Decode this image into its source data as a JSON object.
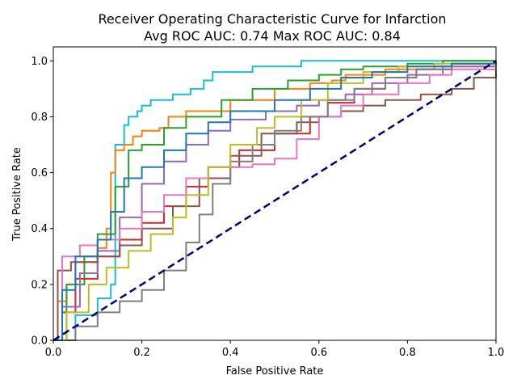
{
  "chart_data": {
    "type": "line",
    "title": "Receiver Operating Characteristic Curve for Infarction",
    "subtitle": "Avg ROC AUC: 0.74  Max ROC AUC: 0.84",
    "xlabel": "False Positive Rate",
    "ylabel": "True Positive Rate",
    "xlim": [
      0,
      1
    ],
    "ylim": [
      0,
      1.05
    ],
    "x_ticks": [
      "0.0",
      "0.2",
      "0.4",
      "0.6",
      "0.8",
      "1.0"
    ],
    "y_ticks": [
      "0.0",
      "0.2",
      "0.4",
      "0.6",
      "0.8",
      "1.0"
    ],
    "grid": false,
    "legend": "none",
    "diagonal": {
      "x": [
        0,
        1
      ],
      "y": [
        0,
        1
      ],
      "color": "#000080",
      "style": "dashed"
    },
    "series": [
      {
        "color": "#17becf",
        "x": [
          0,
          0.05,
          0.1,
          0.13,
          0.14,
          0.16,
          0.16,
          0.17,
          0.19,
          0.2,
          0.22,
          0.27,
          0.31,
          0.34,
          0.36,
          0.45,
          0.56,
          0.63,
          0.66,
          0.7,
          0.8,
          1.0
        ],
        "y": [
          0,
          0.09,
          0.15,
          0.2,
          0.7,
          0.72,
          0.77,
          0.8,
          0.82,
          0.84,
          0.86,
          0.88,
          0.9,
          0.93,
          0.96,
          0.98,
          1.0,
          1.0,
          1.0,
          1.0,
          1.0,
          1.0
        ]
      },
      {
        "color": "#ff7f0e",
        "x": [
          0,
          0.01,
          0.03,
          0.05,
          0.1,
          0.12,
          0.13,
          0.14,
          0.16,
          0.18,
          0.2,
          0.24,
          0.26,
          0.3,
          0.4,
          0.5,
          0.58,
          0.63,
          0.66,
          0.75,
          0.86,
          1.0
        ],
        "y": [
          0,
          0.14,
          0.2,
          0.28,
          0.33,
          0.4,
          0.6,
          0.68,
          0.7,
          0.73,
          0.75,
          0.76,
          0.8,
          0.82,
          0.86,
          0.9,
          0.92,
          0.93,
          0.95,
          0.97,
          0.98,
          1.0
        ]
      },
      {
        "color": "#2ca02c",
        "x": [
          0,
          0.03,
          0.07,
          0.1,
          0.14,
          0.17,
          0.2,
          0.25,
          0.3,
          0.38,
          0.45,
          0.53,
          0.6,
          0.65,
          0.7,
          0.8,
          0.88,
          1.0
        ],
        "y": [
          0,
          0.2,
          0.3,
          0.38,
          0.55,
          0.68,
          0.7,
          0.76,
          0.8,
          0.86,
          0.9,
          0.93,
          0.95,
          0.97,
          0.98,
          0.99,
          1.0,
          1.0
        ]
      },
      {
        "color": "#d62728",
        "x": [
          0,
          0.02,
          0.05,
          0.1,
          0.15,
          0.2,
          0.25,
          0.3,
          0.35,
          0.42,
          0.5,
          0.58,
          0.62,
          0.68,
          0.75,
          0.82,
          0.9,
          1.0
        ],
        "y": [
          0,
          0.1,
          0.22,
          0.3,
          0.36,
          0.42,
          0.48,
          0.55,
          0.62,
          0.68,
          0.74,
          0.8,
          0.85,
          0.9,
          0.94,
          0.97,
          0.99,
          1.0
        ]
      },
      {
        "color": "#9467bd",
        "x": [
          0,
          0.02,
          0.06,
          0.1,
          0.15,
          0.2,
          0.25,
          0.3,
          0.35,
          0.4,
          0.48,
          0.55,
          0.6,
          0.66,
          0.72,
          0.8,
          0.88,
          1.0
        ],
        "y": [
          0,
          0.12,
          0.24,
          0.32,
          0.44,
          0.56,
          0.64,
          0.7,
          0.75,
          0.79,
          0.82,
          0.84,
          0.86,
          0.88,
          0.92,
          0.95,
          0.98,
          1.0
        ]
      },
      {
        "color": "#8c564b",
        "x": [
          0,
          0.01,
          0.04,
          0.1,
          0.15,
          0.2,
          0.27,
          0.33,
          0.4,
          0.47,
          0.55,
          0.6,
          0.65,
          0.7,
          0.75,
          0.83,
          0.9,
          0.95,
          1.0
        ],
        "y": [
          0,
          0.25,
          0.28,
          0.3,
          0.34,
          0.4,
          0.48,
          0.58,
          0.66,
          0.74,
          0.78,
          0.8,
          0.82,
          0.84,
          0.86,
          0.88,
          0.9,
          0.94,
          1.0
        ]
      },
      {
        "color": "#e377c2",
        "x": [
          0,
          0.02,
          0.06,
          0.1,
          0.15,
          0.2,
          0.25,
          0.3,
          0.35,
          0.45,
          0.5,
          0.55,
          0.6,
          0.65,
          0.7,
          0.78,
          0.85,
          0.9,
          1.0
        ],
        "y": [
          0,
          0.3,
          0.34,
          0.36,
          0.4,
          0.46,
          0.52,
          0.58,
          0.62,
          0.63,
          0.65,
          0.72,
          0.8,
          0.84,
          0.88,
          0.92,
          0.95,
          0.97,
          1.0
        ]
      },
      {
        "color": "#7f7f7f",
        "x": [
          0,
          0.05,
          0.1,
          0.15,
          0.2,
          0.25,
          0.3,
          0.33,
          0.36,
          0.4,
          0.45,
          0.5,
          0.56,
          0.62,
          0.68,
          0.75,
          0.82,
          0.9,
          1.0
        ],
        "y": [
          0,
          0.05,
          0.1,
          0.14,
          0.18,
          0.25,
          0.35,
          0.45,
          0.56,
          0.64,
          0.7,
          0.75,
          0.8,
          0.86,
          0.9,
          0.94,
          0.97,
          0.99,
          1.0
        ]
      },
      {
        "color": "#bcbd22",
        "x": [
          0,
          0.03,
          0.08,
          0.12,
          0.17,
          0.22,
          0.27,
          0.3,
          0.35,
          0.4,
          0.46,
          0.5,
          0.56,
          0.62,
          0.7,
          0.78,
          0.86,
          1.0
        ],
        "y": [
          0,
          0.1,
          0.2,
          0.26,
          0.32,
          0.38,
          0.44,
          0.52,
          0.62,
          0.7,
          0.76,
          0.8,
          0.86,
          0.92,
          0.96,
          0.98,
          0.99,
          1.0
        ]
      },
      {
        "color": "#1f77b4",
        "x": [
          0,
          0.02,
          0.05,
          0.1,
          0.13,
          0.16,
          0.2,
          0.25,
          0.3,
          0.35,
          0.4,
          0.5,
          0.58,
          0.65,
          0.72,
          0.8,
          0.9,
          1.0
        ],
        "y": [
          0,
          0.18,
          0.3,
          0.36,
          0.46,
          0.58,
          0.62,
          0.68,
          0.74,
          0.78,
          0.82,
          0.86,
          0.9,
          0.94,
          0.96,
          0.98,
          0.99,
          1.0
        ]
      }
    ]
  }
}
